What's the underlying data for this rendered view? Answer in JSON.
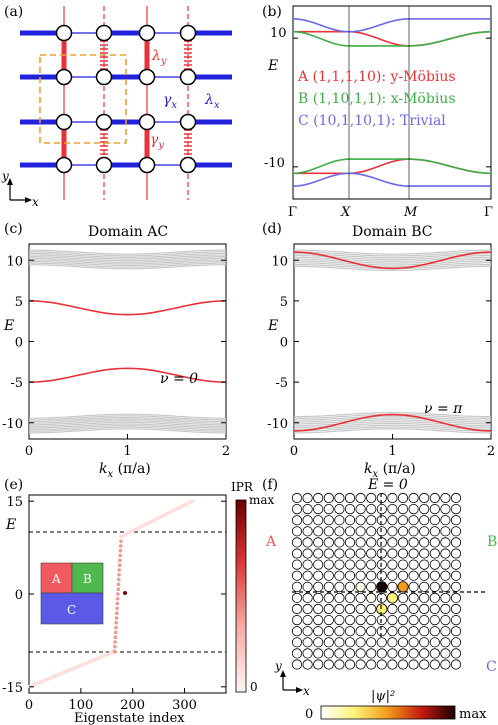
{
  "colors": {
    "red": "#e8323a",
    "blue": "#2222dd",
    "green": "#3fae49",
    "purple": "#6a6ae8",
    "orange": "#f0a030",
    "gray": "#c8c8c8",
    "regionA": "#f0595f",
    "regionB": "#4fb84f",
    "regionC": "#5a5ae6"
  },
  "panel_a": {
    "label": "(a)",
    "lambda_y": "λ",
    "lambda_y_sub": "y",
    "gamma_y": "γ",
    "gamma_y_sub": "y",
    "gamma_x": "γ",
    "gamma_x_sub": "x",
    "lambda_x": "λ",
    "lambda_x_sub": "x",
    "axis_x": "x",
    "axis_y": "y"
  },
  "panel_b": {
    "label": "(b)",
    "ylabel": "E",
    "legend": [
      {
        "text": "A (1,1,1,10): y-Möbius",
        "color": "#e8323a"
      },
      {
        "text": "B (1,10,1,1): x-Möbius",
        "color": "#3fae49"
      },
      {
        "text": "C (10,1,10,1): Trivial",
        "color": "#6a6ae8"
      }
    ],
    "xticks": [
      "Γ",
      "X",
      "M",
      "Γ"
    ],
    "yticks": [
      "10",
      "-10"
    ]
  },
  "panel_c": {
    "label": "(c)",
    "title": "Domain AC",
    "ylabel": "E",
    "xlabel_k": "k",
    "xlabel_sub": "x",
    "xlabel_unit": " (π/a)",
    "annotation": "ν = 0",
    "xticks": [
      "0",
      "1",
      "2"
    ],
    "yticks": [
      "10",
      "5",
      "0",
      "-5",
      "-10"
    ]
  },
  "panel_d": {
    "label": "(d)",
    "title": "Domain BC",
    "ylabel": "E",
    "xlabel_k": "k",
    "xlabel_sub": "x",
    "xlabel_unit": " (π/a)",
    "annotation": "ν = π",
    "xticks": [
      "0",
      "1",
      "2"
    ],
    "yticks": [
      "10",
      "5",
      "0",
      "-5",
      "-10"
    ]
  },
  "panel_e": {
    "label": "(e)",
    "ylabel": "E",
    "xlabel": "Eigenstate index",
    "xticks": [
      "0",
      "100",
      "200",
      "300"
    ],
    "yticks": [
      "15",
      "0",
      "-15"
    ],
    "colorbar_title": "IPR",
    "colorbar_max": "max",
    "colorbar_min": "0",
    "inset": {
      "A": "A",
      "B": "B",
      "C": "C"
    }
  },
  "panel_f": {
    "label": "(f)",
    "title": "E = 0",
    "region_a": "A",
    "region_b": "B",
    "region_c": "C",
    "axis_x": "x",
    "axis_y": "y",
    "psi_label": "|ψ|²",
    "colorbar_min": "0",
    "colorbar_max": "max"
  },
  "chart_data": [
    {
      "type": "line",
      "panel": "b",
      "xlabel": "",
      "ylabel": "E",
      "x_categories": [
        "Γ",
        "X",
        "M",
        "Γ"
      ],
      "series": [
        {
          "name": "A (1,1,1,10): y-Möbius",
          "upper": [
            11.0,
            11.0,
            8.8,
            11.0
          ],
          "lower": [
            -11.0,
            -11.0,
            -8.8,
            -11.0
          ]
        },
        {
          "name": "B (1,10,1,1): x-Möbius",
          "upper": [
            11.0,
            8.8,
            8.8,
            11.0
          ],
          "lower": [
            -11.0,
            -8.8,
            -8.8,
            -11.0
          ]
        },
        {
          "name": "C (10,1,10,1): Trivial",
          "upper": [
            13.0,
            11.0,
            13.0,
            13.0
          ],
          "lower": [
            -13.0,
            -11.0,
            -13.0,
            -13.0
          ]
        }
      ]
    },
    {
      "type": "line",
      "panel": "c",
      "title": "Domain AC",
      "xlabel": "k_x (π/a)",
      "ylabel": "E",
      "xlim": [
        0,
        2
      ],
      "ylim": [
        -12,
        12
      ],
      "edge_states": {
        "kx": [
          0,
          1,
          2
        ],
        "upper": [
          5.0,
          3.3,
          5.0
        ],
        "lower": [
          -5.0,
          -3.3,
          -5.0
        ]
      },
      "bulk_bands": {
        "upper_range": [
          9.2,
          11.0
        ],
        "lower_range": [
          -11.0,
          -9.2
        ]
      },
      "annotation": "ν = 0"
    },
    {
      "type": "line",
      "panel": "d",
      "title": "Domain BC",
      "xlabel": "k_x (π/a)",
      "ylabel": "E",
      "xlim": [
        0,
        2
      ],
      "ylim": [
        -12,
        12
      ],
      "edge_states": {
        "kx": [
          0,
          1,
          2
        ],
        "upper": [
          11.0,
          9.0,
          11.0
        ],
        "lower": [
          -11.0,
          -9.0,
          -11.0
        ]
      },
      "bulk_bands": {
        "upper_range": [
          9.0,
          11.0
        ],
        "lower_range": [
          -11.0,
          -9.0
        ]
      },
      "annotation": "ν = π"
    },
    {
      "type": "scatter",
      "panel": "e",
      "xlabel": "Eigenstate index",
      "ylabel": "E",
      "xlim": [
        0,
        380
      ],
      "ylim": [
        -16,
        16
      ],
      "segments": [
        {
          "x": [
            0,
            165
          ],
          "y": [
            -15,
            -9.3
          ]
        },
        {
          "x": [
            165,
            178
          ],
          "y": [
            -9.3,
            9.3
          ]
        },
        {
          "x": [
            178,
            315
          ],
          "y": [
            9.3,
            15
          ]
        }
      ],
      "special_point": {
        "x": 188,
        "y": 0
      },
      "dashed_lines_y": [
        10,
        -10
      ]
    }
  ]
}
